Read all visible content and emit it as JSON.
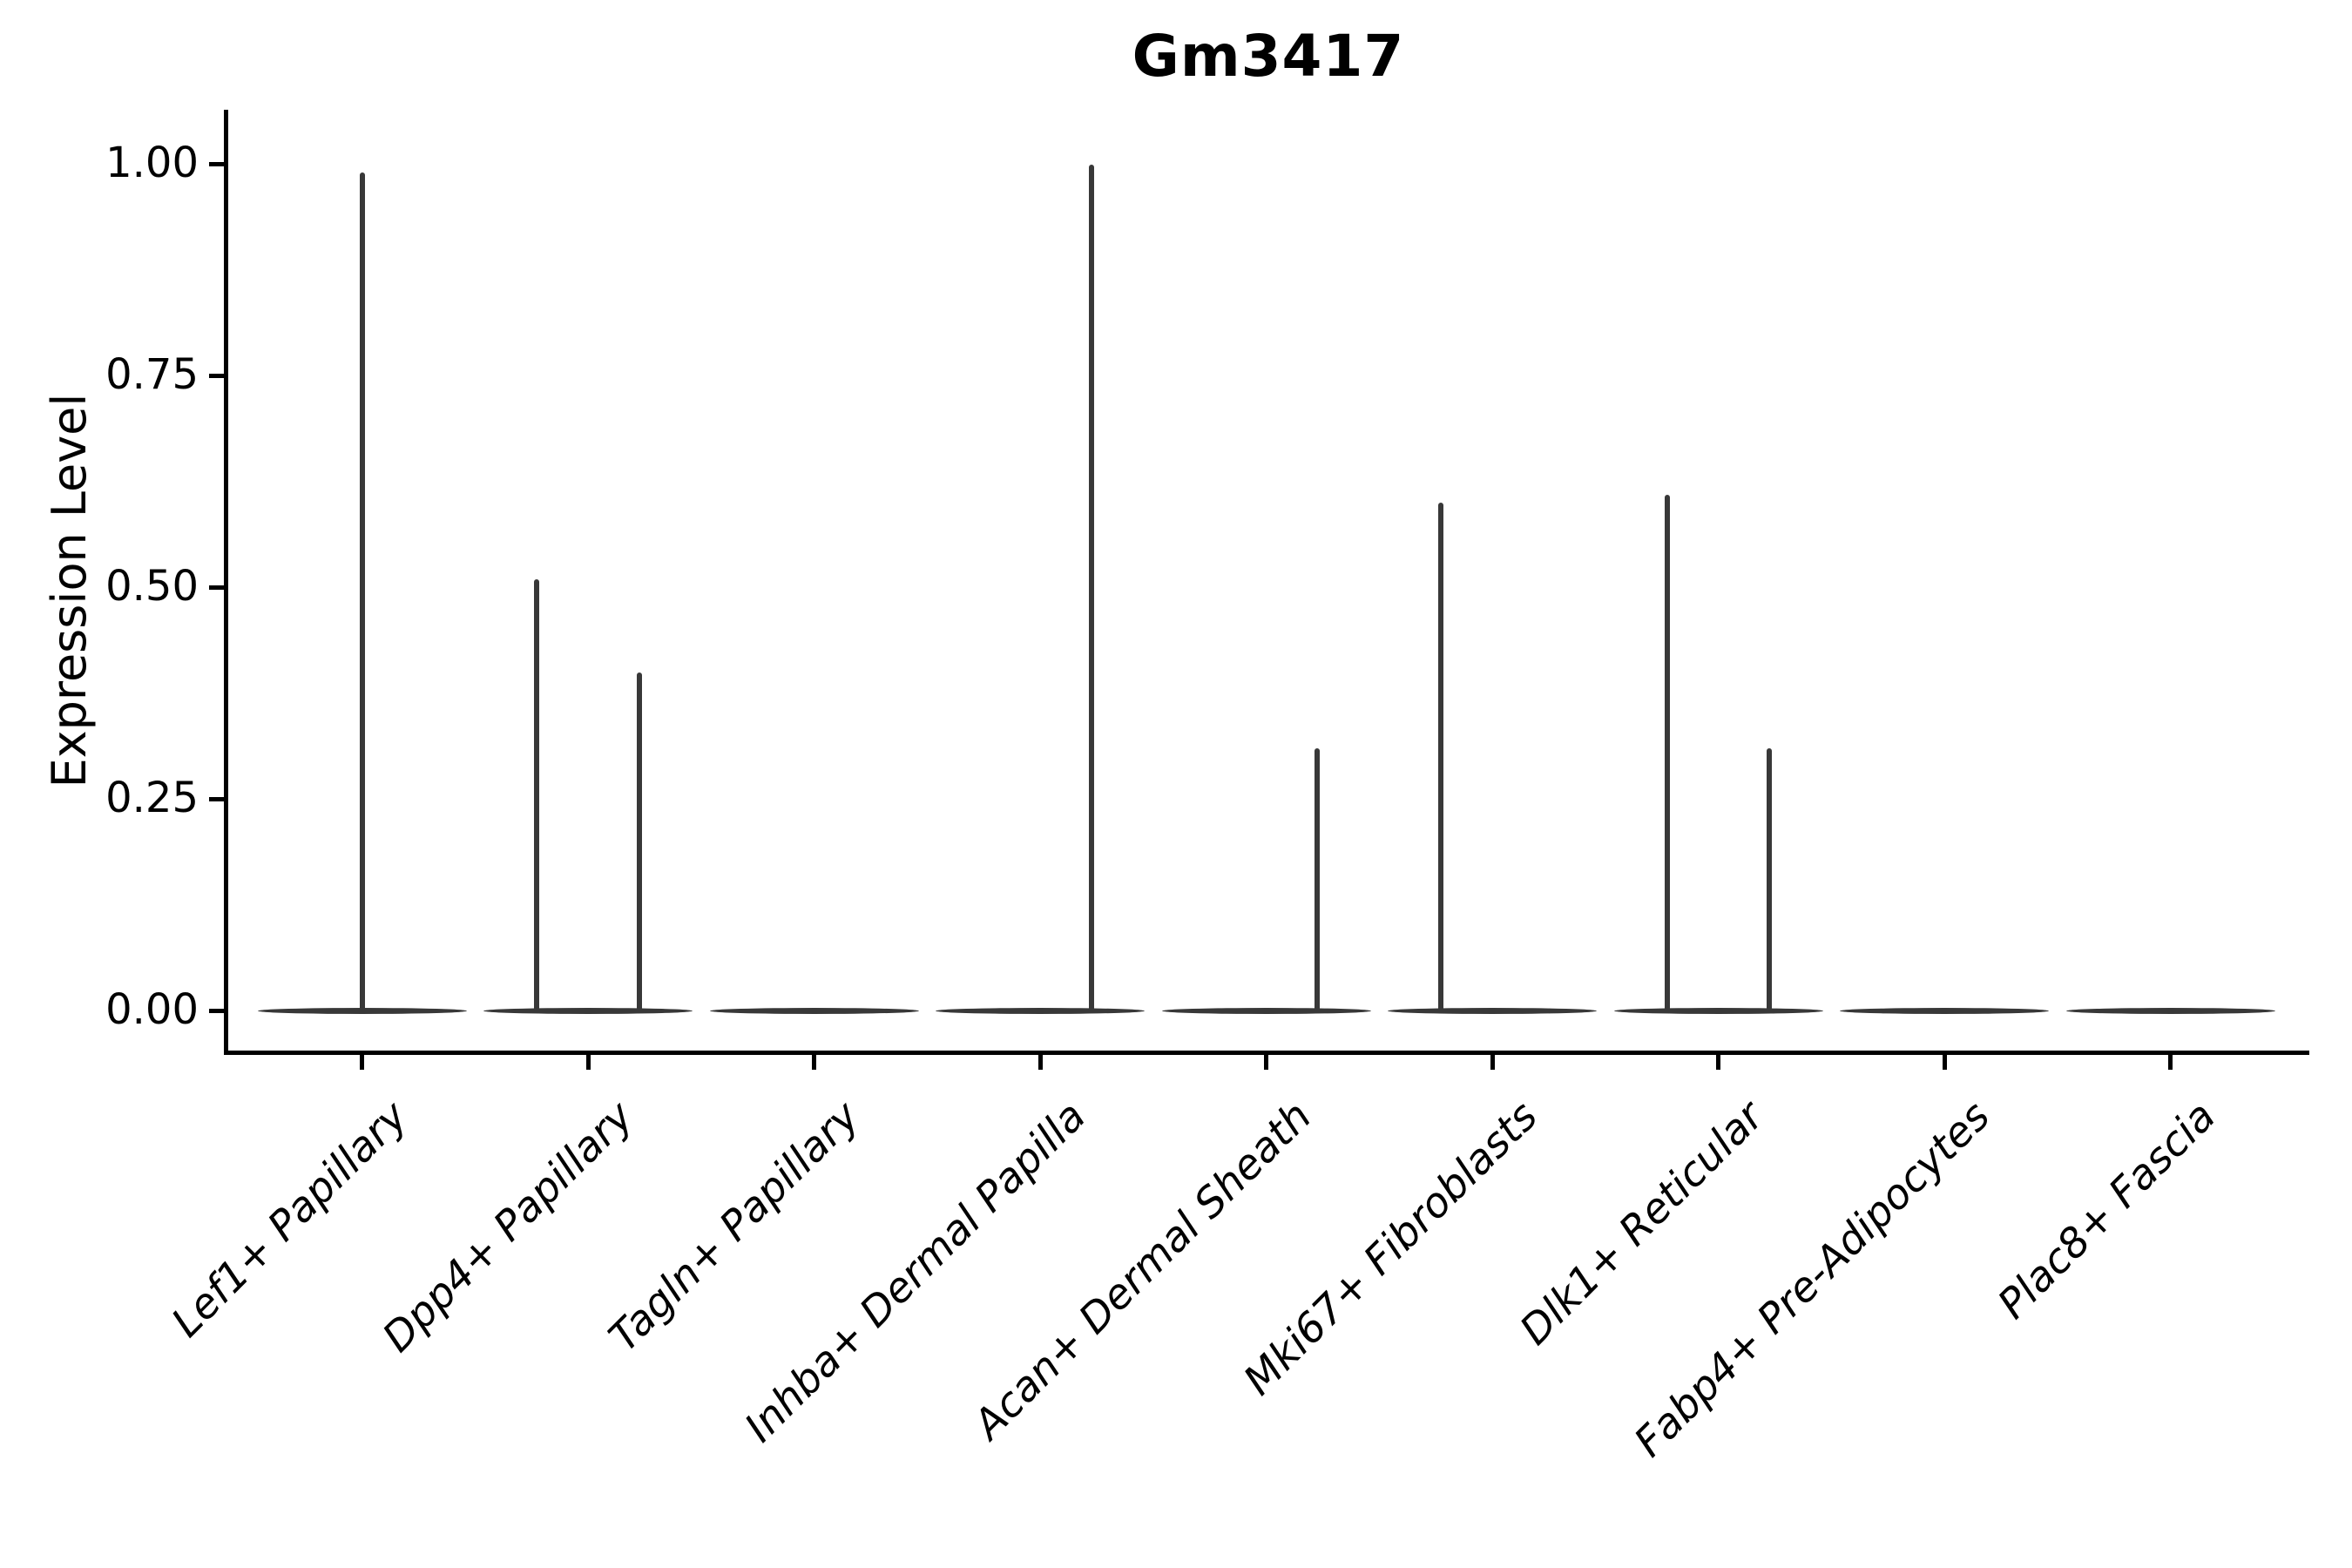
{
  "title": "Gm3417",
  "axes": {
    "y_label": "Expression Level",
    "y_ticks": [
      {
        "label": "1.00",
        "value": 1.0
      },
      {
        "label": "0.75",
        "value": 0.75
      },
      {
        "label": "0.50",
        "value": 0.5
      },
      {
        "label": "0.25",
        "value": 0.25
      },
      {
        "label": "0.00",
        "value": 0.0
      }
    ]
  },
  "chart_data": {
    "type": "violin",
    "title": "Gm3417",
    "xlabel": "",
    "ylabel": "Expression Level",
    "ylim": [
      0,
      1.04
    ],
    "grid": false,
    "legend": "none",
    "categories": [
      "Lef1+ Papillary",
      "Dpp4+ Papillary",
      "Tagln+ Papillary",
      "Inhba+ Dermal Papilla",
      "Acan+ Dermal Sheath",
      "Mki67+ Fibroblasts",
      "Dlk1+ Reticular",
      "Fabp4+ Pre-Adipocytes",
      "Plac8+ Fascia"
    ],
    "violins": [
      {
        "category": "Lef1+ Papillary",
        "zero_density_base": true,
        "spikes": [
          {
            "pos": "center",
            "max": 0.99
          }
        ]
      },
      {
        "category": "Dpp4+ Papillary",
        "zero_density_base": true,
        "spikes": [
          {
            "pos": "left",
            "max": 0.51
          },
          {
            "pos": "right",
            "max": 0.4
          }
        ]
      },
      {
        "category": "Tagln+ Papillary",
        "zero_density_base": true,
        "spikes": []
      },
      {
        "category": "Inhba+ Dermal Papilla",
        "zero_density_base": true,
        "spikes": [
          {
            "pos": "right",
            "max": 1.0
          }
        ]
      },
      {
        "category": "Acan+ Dermal Sheath",
        "zero_density_base": true,
        "spikes": [
          {
            "pos": "right",
            "max": 0.31
          }
        ]
      },
      {
        "category": "Mki67+ Fibroblasts",
        "zero_density_base": true,
        "spikes": [
          {
            "pos": "left",
            "max": 0.6
          }
        ]
      },
      {
        "category": "Dlk1+ Reticular",
        "zero_density_base": true,
        "spikes": [
          {
            "pos": "left",
            "max": 0.61
          },
          {
            "pos": "right",
            "max": 0.31
          }
        ]
      },
      {
        "category": "Fabp4+ Pre-Adipocytes",
        "zero_density_base": true,
        "spikes": []
      },
      {
        "category": "Plac8+ Fascia",
        "zero_density_base": true,
        "spikes": []
      }
    ],
    "colors": {
      "violin_stroke": "#383838",
      "axis": "#000000",
      "text": "#000000",
      "background": "#ffffff"
    }
  }
}
